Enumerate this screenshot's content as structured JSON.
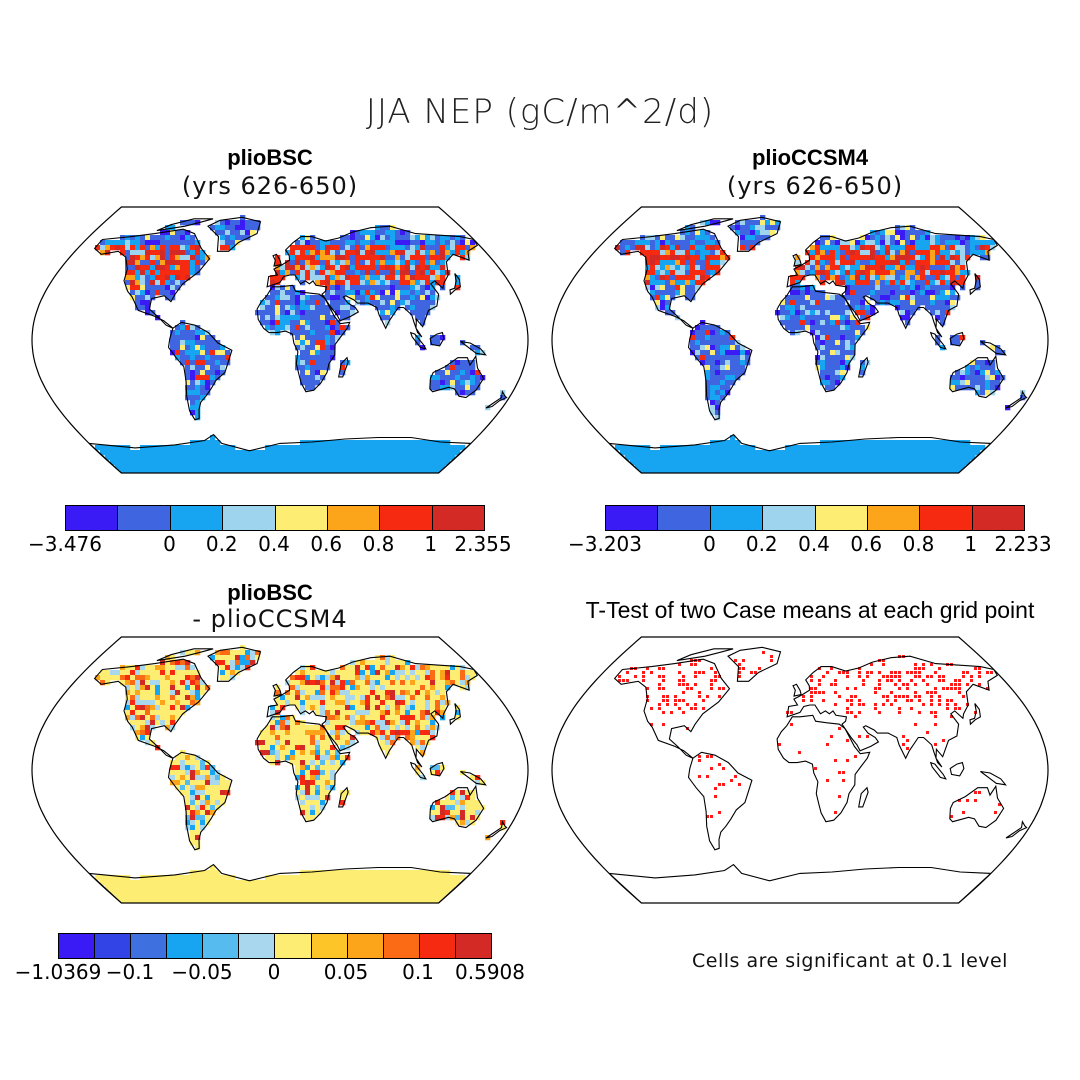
{
  "figure": {
    "title": "JJA NEP (gC/m^2/d)"
  },
  "panels": [
    {
      "id": "p1",
      "title": "plioBSC",
      "subtitle": "(yrs 626-650)"
    },
    {
      "id": "p2",
      "title": "plioCCSM4",
      "subtitle": "(yrs 626-650)"
    },
    {
      "id": "p3",
      "title": "plioBSC",
      "subtitle": "- plioCCSM4"
    },
    {
      "id": "p4",
      "title": "T-Test of two Case means at each grid point",
      "note": "Cells are significant at 0.1 level"
    }
  ],
  "colorbars": {
    "cb1": {
      "colors": [
        "#3a1af5",
        "#3f66e0",
        "#17a4f0",
        "#9ed4ee",
        "#fdee73",
        "#fca41a",
        "#f62a10",
        "#d32a26"
      ],
      "labels": [
        "-3.476",
        "0",
        "0.2",
        "0.4",
        "0.6",
        "0.8",
        "1",
        "2.355"
      ]
    },
    "cb2": {
      "colors": [
        "#3a1af5",
        "#3f66e0",
        "#17a4f0",
        "#9ed4ee",
        "#fdee73",
        "#fca41a",
        "#f62a10",
        "#d32a26"
      ],
      "labels": [
        "-3.203",
        "0",
        "0.2",
        "0.4",
        "0.6",
        "0.8",
        "1",
        "2.233"
      ]
    },
    "cb3": {
      "colors": [
        "#3a1af5",
        "#3344e6",
        "#3f70e0",
        "#17a4f0",
        "#56bcef",
        "#a9d8ee",
        "#fdee73",
        "#fdc528",
        "#fca41a",
        "#fb6a14",
        "#f62a10",
        "#d32a26"
      ],
      "labels": [
        "-1.0369",
        "-0.1",
        "-0.05",
        "0",
        "0.05",
        "0.1",
        "0.5908"
      ]
    }
  },
  "map_colors": {
    "ocean": "#ffffff",
    "coast": "#000000",
    "significant": "#ff1a1a"
  }
}
